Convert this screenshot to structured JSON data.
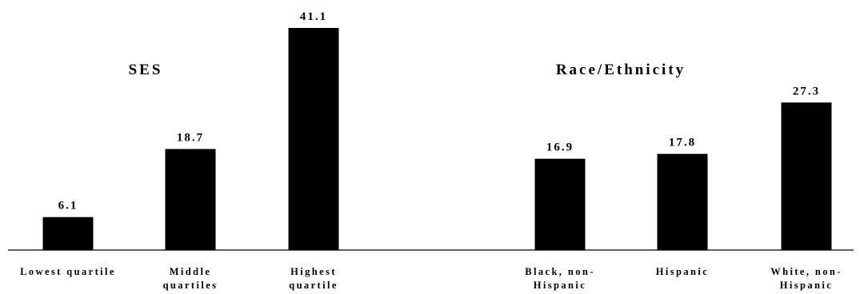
{
  "chart_data": {
    "type": "bar",
    "groups": [
      {
        "title": "SES",
        "categories": [
          [
            "Lowest quartile"
          ],
          [
            "Middle",
            "quartiles"
          ],
          [
            "Highest",
            "quartile"
          ]
        ],
        "values": [
          6.1,
          18.7,
          41.1
        ],
        "value_labels": [
          "6.1",
          "18.7",
          "41.1"
        ]
      },
      {
        "title": "Race/Ethnicity",
        "categories": [
          [
            "Black, non-",
            "Hispanic"
          ],
          [
            "Hispanic"
          ],
          [
            "White, non-",
            "Hispanic"
          ]
        ],
        "values": [
          16.9,
          17.8,
          27.3
        ],
        "value_labels": [
          "16.9",
          "17.8",
          "27.3"
        ]
      }
    ],
    "ylim": [
      0,
      41.1
    ],
    "grid": false,
    "legend": "none",
    "bar_color": "#000000",
    "background": "#ffffff"
  }
}
